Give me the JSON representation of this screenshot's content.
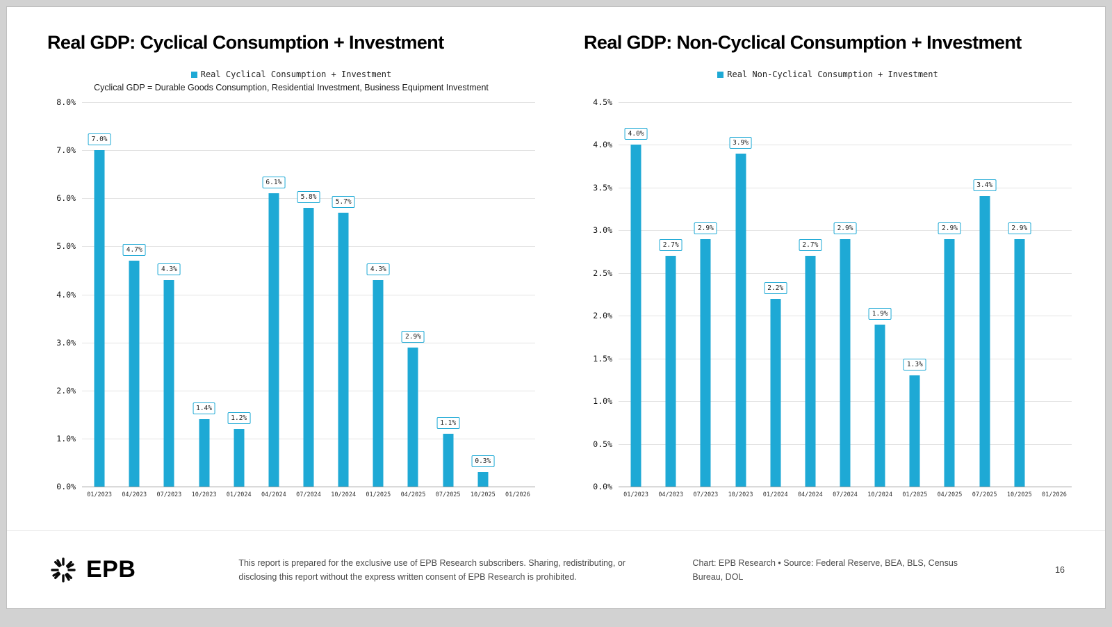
{
  "brand": {
    "logo_text": "EPB"
  },
  "footer": {
    "disclaimer": "This report is prepared for the exclusive use of EPB Research subscribers. Sharing, redistributing, or disclosing this report without the express written consent of EPB Research is prohibited.",
    "credit": "Chart: EPB Research  •  Source: Federal Reserve, BEA, BLS, Census Bureau, DOL",
    "page_number": "16"
  },
  "chart_data": [
    {
      "type": "bar",
      "title": "Real GDP: Cyclical Consumption + Investment",
      "legend": "Real Cyclical Consumption + Investment",
      "subtitle": "Cyclical GDP = Durable Goods Consumption, Residential Investment, Business Equipment Investment",
      "categories": [
        "01/2023",
        "04/2023",
        "07/2023",
        "10/2023",
        "01/2024",
        "04/2024",
        "07/2024",
        "10/2024",
        "01/2025",
        "04/2025",
        "07/2025",
        "10/2025",
        "01/2026"
      ],
      "values": [
        7.0,
        4.7,
        4.3,
        1.4,
        1.2,
        6.1,
        5.8,
        5.7,
        4.3,
        2.9,
        1.1,
        0.3,
        null
      ],
      "labels": [
        "7.0%",
        "4.7%",
        "4.3%",
        "1.4%",
        "1.2%",
        "6.1%",
        "5.8%",
        "5.7%",
        "4.3%",
        "2.9%",
        "1.1%",
        "0.3%",
        ""
      ],
      "ylabel": "",
      "xlabel": "",
      "ylim": [
        0,
        8.0
      ],
      "ytick_step": 1.0,
      "grid": true,
      "legend_position": "top",
      "bar_color": "#1ea9d5"
    },
    {
      "type": "bar",
      "title": "Real GDP: Non-Cyclical Consumption + Investment",
      "legend": "Real Non-Cyclical Consumption + Investment",
      "subtitle": "",
      "categories": [
        "01/2023",
        "04/2023",
        "07/2023",
        "10/2023",
        "01/2024",
        "04/2024",
        "07/2024",
        "10/2024",
        "01/2025",
        "04/2025",
        "07/2025",
        "10/2025",
        "01/2026"
      ],
      "values": [
        4.0,
        2.7,
        2.9,
        3.9,
        2.2,
        2.7,
        2.9,
        1.9,
        1.3,
        2.9,
        3.4,
        2.9,
        null
      ],
      "labels": [
        "4.0%",
        "2.7%",
        "2.9%",
        "3.9%",
        "2.2%",
        "2.7%",
        "2.9%",
        "1.9%",
        "1.3%",
        "2.9%",
        "3.4%",
        "2.9%",
        ""
      ],
      "ylabel": "",
      "xlabel": "",
      "ylim": [
        0,
        4.5
      ],
      "ytick_step": 0.5,
      "grid": true,
      "legend_position": "top",
      "bar_color": "#1ea9d5"
    }
  ]
}
